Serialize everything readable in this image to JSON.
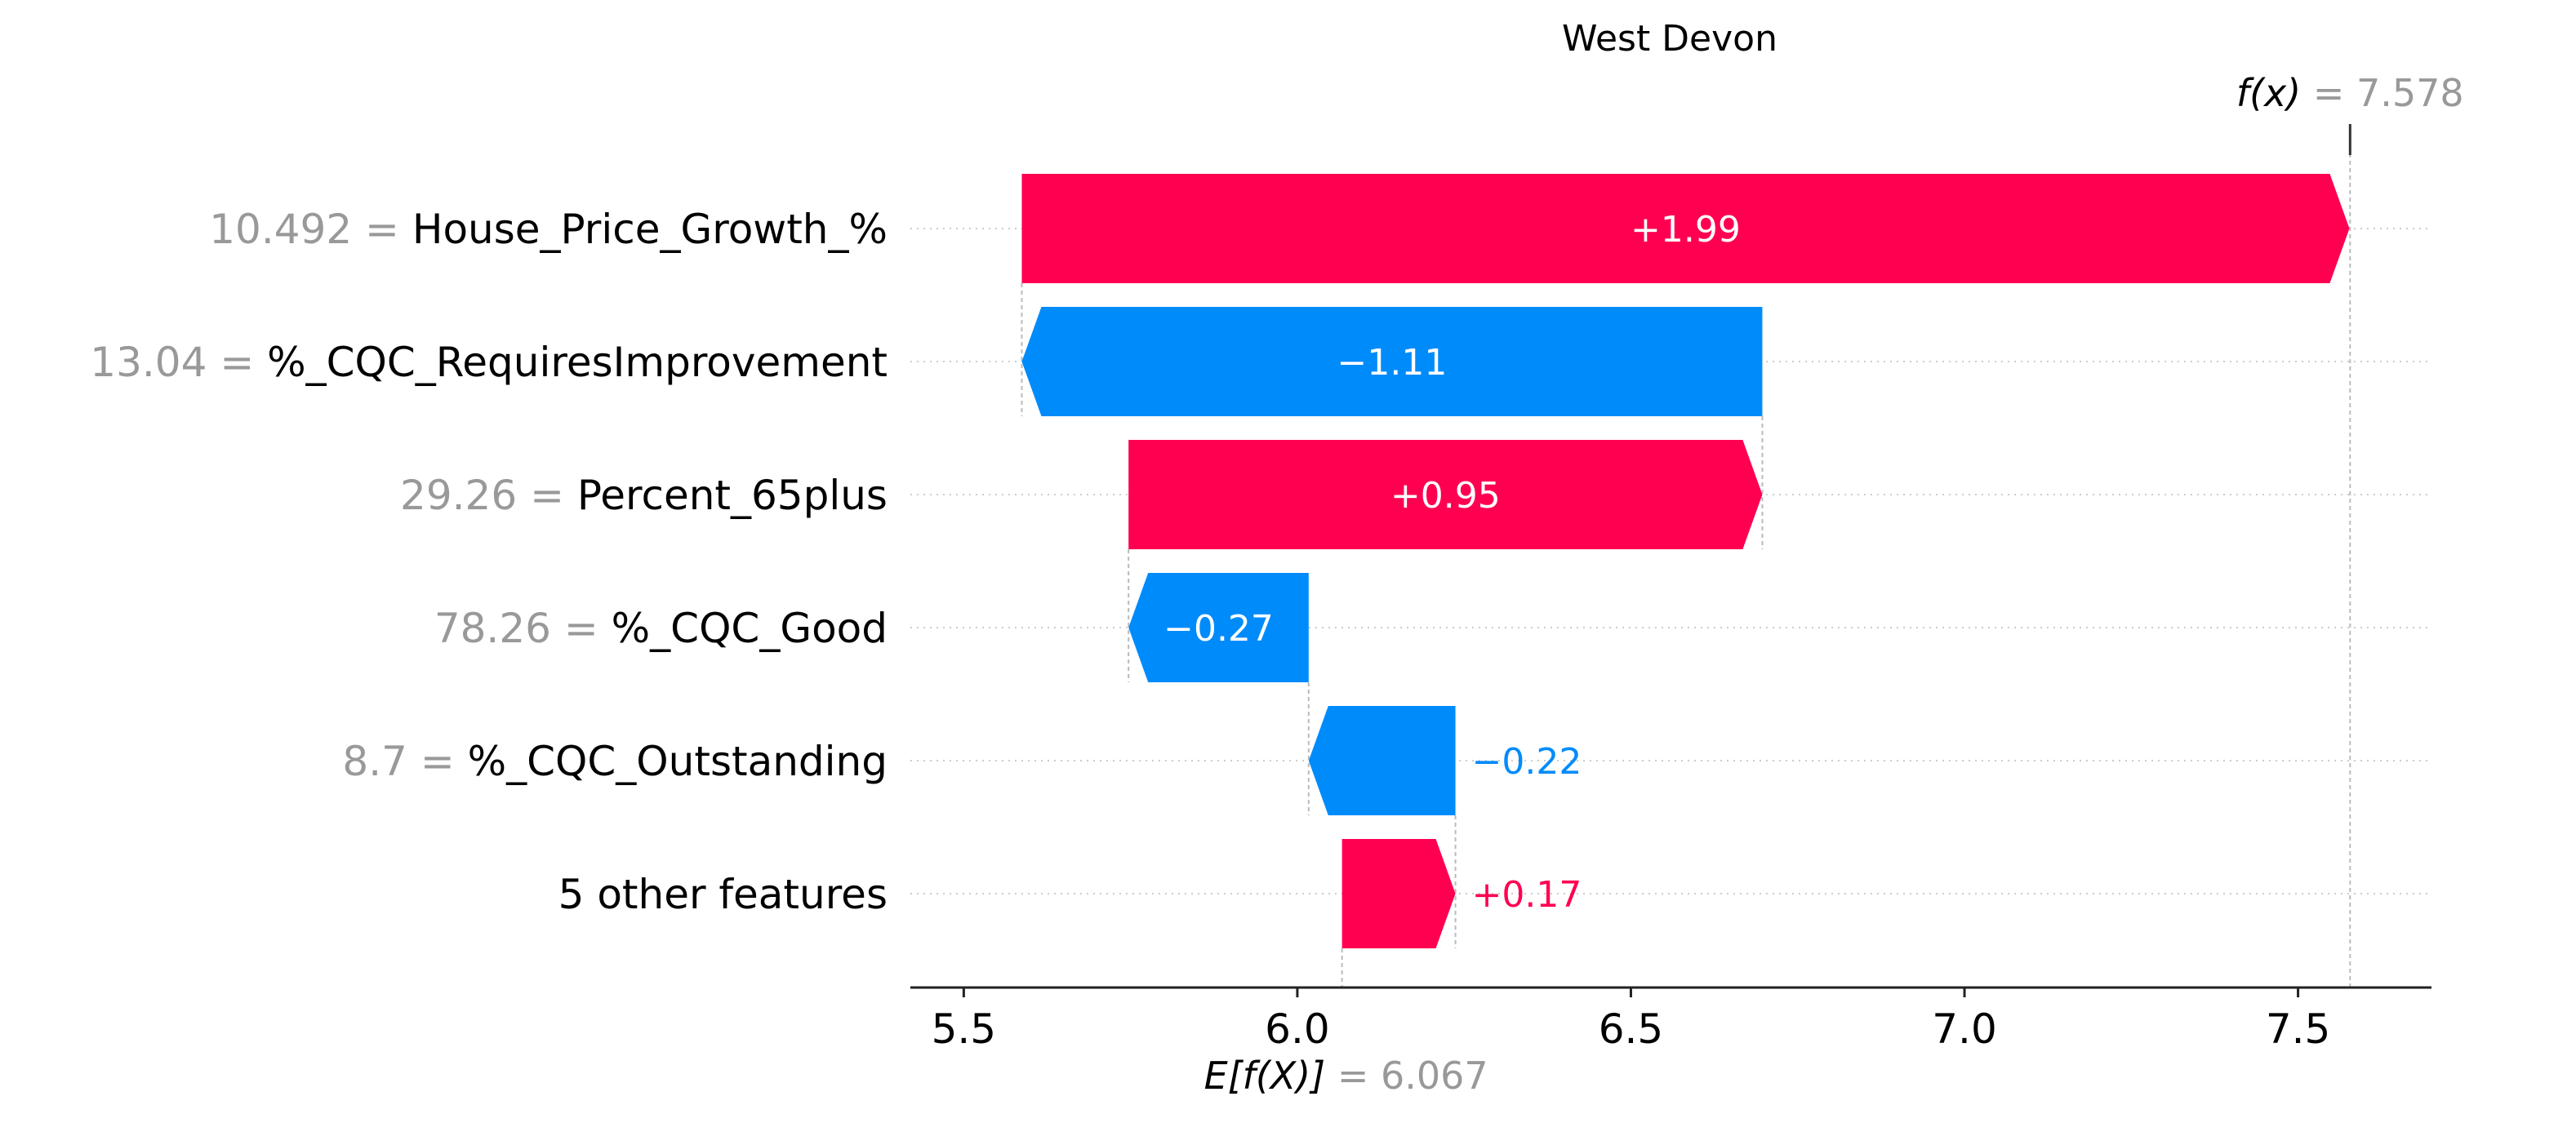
{
  "chart_data": {
    "type": "waterfall",
    "title": "West Devon",
    "base_value": 6.067,
    "output_value": 7.578,
    "expected_label": "E[f(X)]",
    "expected_value_text": "= 6.067",
    "output_label": "f(x)",
    "output_value_text": "= 7.578",
    "xlim": [
      5.42,
      7.7
    ],
    "xticks": [
      5.5,
      6.0,
      6.5,
      7.0,
      7.5
    ],
    "xtick_labels": [
      "5.5",
      "6.0",
      "6.5",
      "7.0",
      "7.5"
    ],
    "features": [
      {
        "value_text": "10.492",
        "name": "House_Price_Growth_%",
        "contribution": 1.99,
        "label": "+1.99"
      },
      {
        "value_text": "13.04",
        "name": "%_CQC_RequiresImprovement",
        "contribution": -1.11,
        "label": "−1.11"
      },
      {
        "value_text": "29.26",
        "name": "Percent_65plus",
        "contribution": 0.95,
        "label": "+0.95"
      },
      {
        "value_text": "78.26",
        "name": "%_CQC_Good",
        "contribution": -0.27,
        "label": "−0.27"
      },
      {
        "value_text": "8.7",
        "name": "%_CQC_Outstanding",
        "contribution": -0.22,
        "label": "−0.22"
      },
      {
        "value_text": "",
        "name": "5 other features",
        "contribution": 0.17,
        "label": "+0.17"
      }
    ],
    "colors": {
      "positive": "#ff0051",
      "negative": "#008bfb",
      "feature_value": "#999999",
      "text": "#000000",
      "guide": "#bbbbbb"
    }
  }
}
